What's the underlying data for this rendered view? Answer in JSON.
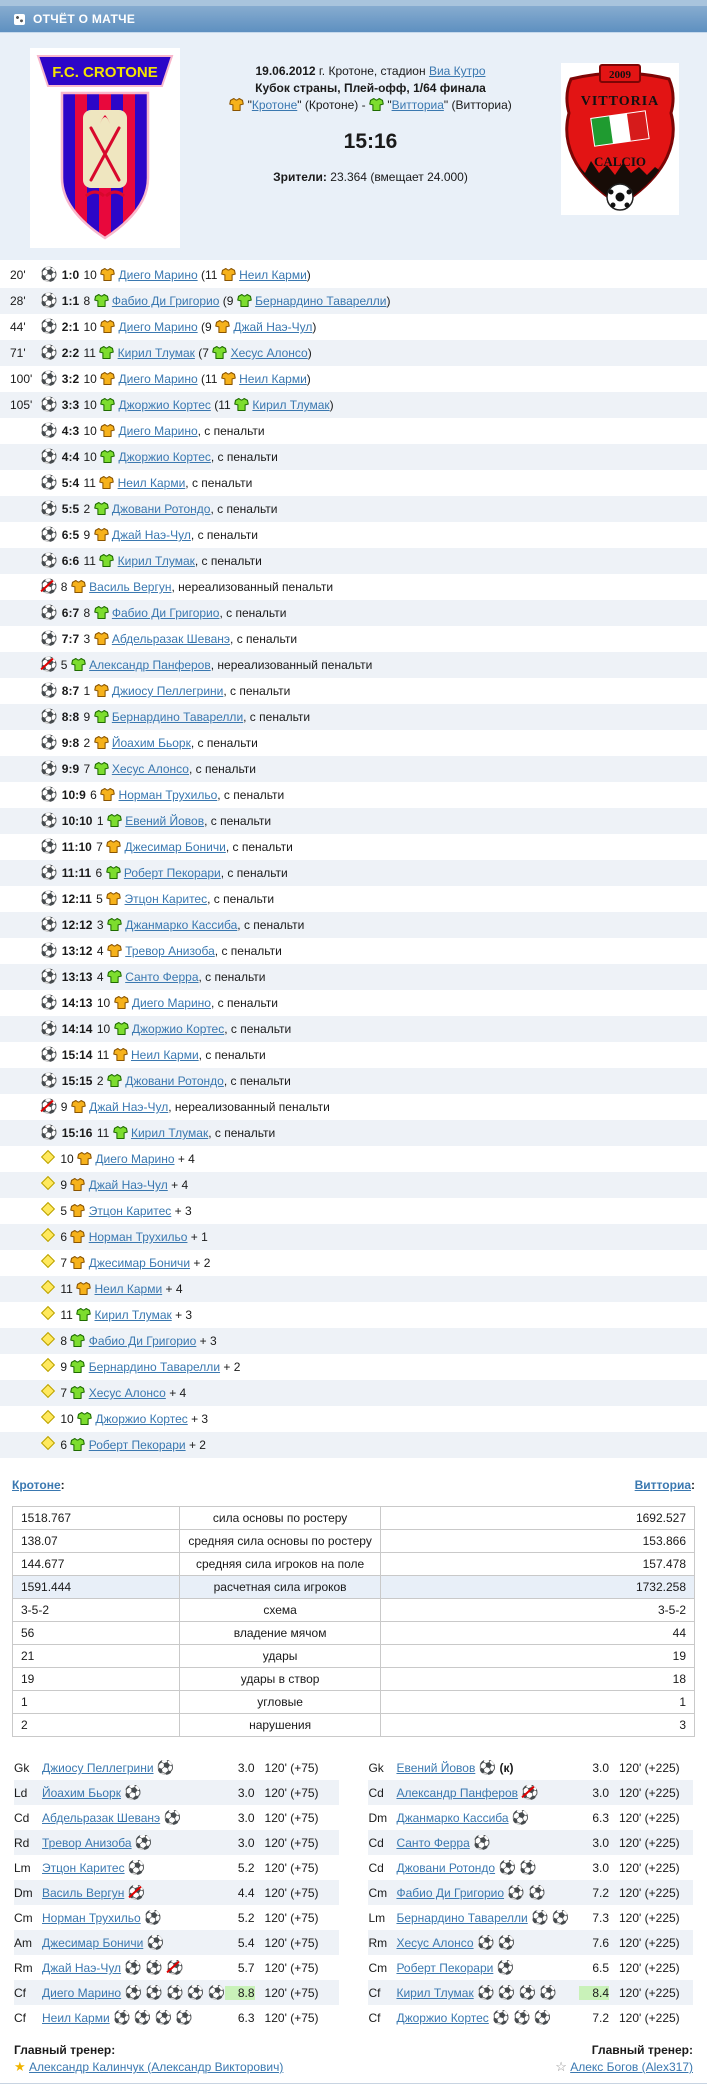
{
  "labels": {
    "quote": "\"",
    "dash": "-",
    "pen": ", с пенальти",
    "miss": ", нереализованный пенальти",
    "colon": ":"
  },
  "header": {
    "title": "ОТЧЁТ О МАТЧЕ"
  },
  "match": {
    "date_bold": "19.06.2012",
    "date_rest": "г. Кротоне, стадион",
    "stadium_link": "Виа Кутро",
    "tournament": "Кубок страны, Плей-офф, 1/64 финала",
    "home_team": {
      "link": "Кротоне",
      "alias": "(Кротоне)"
    },
    "away_team": {
      "link": "Витториа",
      "alias": "(Витториа)"
    },
    "score": "15:16",
    "attendance_label": "Зрители:",
    "attendance_value": "23.364 (вмещает 24.000)"
  },
  "logos": {
    "home": {
      "banner": "F.C. CROTONE"
    },
    "away": {
      "year": "2009",
      "name": "VITTORIA",
      "sub": "CALCIO"
    }
  },
  "events": [
    {
      "time": "20'",
      "kind": "goal",
      "score": "1:0",
      "num": "10",
      "team": "h",
      "player": "Диего Марино",
      "assist": {
        "num": "11",
        "player": "Неил Карми"
      }
    },
    {
      "time": "28'",
      "kind": "goal",
      "score": "1:1",
      "num": "8",
      "team": "a",
      "player": "Фабио Ди Григорио",
      "assist": {
        "num": "9",
        "player": "Бернардино Таварелли"
      }
    },
    {
      "time": "44'",
      "kind": "goal",
      "score": "2:1",
      "num": "10",
      "team": "h",
      "player": "Диего Марино",
      "assist": {
        "num": "9",
        "player": "Джай Наэ-Чул"
      }
    },
    {
      "time": "71'",
      "kind": "goal",
      "score": "2:2",
      "num": "11",
      "team": "a",
      "player": "Кирил Тлумак",
      "assist": {
        "num": "7",
        "player": "Хесус Алонсо"
      }
    },
    {
      "time": "100'",
      "kind": "goal",
      "score": "3:2",
      "num": "10",
      "team": "h",
      "player": "Диего Марино",
      "assist": {
        "num": "11",
        "player": "Неил Карми"
      }
    },
    {
      "time": "105'",
      "kind": "goal",
      "score": "3:3",
      "num": "10",
      "team": "a",
      "player": "Джоржио Кортес",
      "assist": {
        "num": "11",
        "player": "Кирил Тлумак"
      }
    },
    {
      "kind": "pen",
      "score": "4:3",
      "num": "10",
      "team": "h",
      "player": "Диего Марино"
    },
    {
      "kind": "pen",
      "score": "4:4",
      "num": "10",
      "team": "a",
      "player": "Джоржио Кортес"
    },
    {
      "kind": "pen",
      "score": "5:4",
      "num": "11",
      "team": "h",
      "player": "Неил Карми"
    },
    {
      "kind": "pen",
      "score": "5:5",
      "num": "2",
      "team": "a",
      "player": "Джовани Ротондо"
    },
    {
      "kind": "pen",
      "score": "6:5",
      "num": "9",
      "team": "h",
      "player": "Джай Наэ-Чул"
    },
    {
      "kind": "pen",
      "score": "6:6",
      "num": "11",
      "team": "a",
      "player": "Кирил Тлумак"
    },
    {
      "kind": "miss",
      "num": "8",
      "team": "h",
      "player": "Василь Вергун"
    },
    {
      "kind": "pen",
      "score": "6:7",
      "num": "8",
      "team": "a",
      "player": "Фабио Ди Григорио"
    },
    {
      "kind": "pen",
      "score": "7:7",
      "num": "3",
      "team": "h",
      "player": "Абдельразак Шеванэ"
    },
    {
      "kind": "miss",
      "num": "5",
      "team": "a",
      "player": "Александр Панферов"
    },
    {
      "kind": "pen",
      "score": "8:7",
      "num": "1",
      "team": "h",
      "player": "Джиосу Пеллегрини"
    },
    {
      "kind": "pen",
      "score": "8:8",
      "num": "9",
      "team": "a",
      "player": "Бернардино Таварелли"
    },
    {
      "kind": "pen",
      "score": "9:8",
      "num": "2",
      "team": "h",
      "player": "Йоахим Бьорк"
    },
    {
      "kind": "pen",
      "score": "9:9",
      "num": "7",
      "team": "a",
      "player": "Хесус Алонсо"
    },
    {
      "kind": "pen",
      "score": "10:9",
      "num": "6",
      "team": "h",
      "player": "Норман Трухильо"
    },
    {
      "kind": "pen",
      "score": "10:10",
      "num": "1",
      "team": "a",
      "player": "Евений Йовов"
    },
    {
      "kind": "pen",
      "score": "11:10",
      "num": "7",
      "team": "h",
      "player": "Джесимар Боничи"
    },
    {
      "kind": "pen",
      "score": "11:11",
      "num": "6",
      "team": "a",
      "player": "Роберт Пекорари"
    },
    {
      "kind": "pen",
      "score": "12:11",
      "num": "5",
      "team": "h",
      "player": "Этцон Каритес"
    },
    {
      "kind": "pen",
      "score": "12:12",
      "num": "3",
      "team": "a",
      "player": "Джанмарко Кассиба"
    },
    {
      "kind": "pen",
      "score": "13:12",
      "num": "4",
      "team": "h",
      "player": "Тревор Анизоба"
    },
    {
      "kind": "pen",
      "score": "13:13",
      "num": "4",
      "team": "a",
      "player": "Санто Ферра"
    },
    {
      "kind": "pen",
      "score": "14:13",
      "num": "10",
      "team": "h",
      "player": "Диего Марино"
    },
    {
      "kind": "pen",
      "score": "14:14",
      "num": "10",
      "team": "a",
      "player": "Джоржио Кортес"
    },
    {
      "kind": "pen",
      "score": "15:14",
      "num": "11",
      "team": "h",
      "player": "Неил Карми"
    },
    {
      "kind": "pen",
      "score": "15:15",
      "num": "2",
      "team": "a",
      "player": "Джовани Ротондо"
    },
    {
      "kind": "miss",
      "num": "9",
      "team": "h",
      "player": "Джай Наэ-Чул"
    },
    {
      "kind": "pen",
      "score": "15:16",
      "num": "11",
      "team": "a",
      "player": "Кирил Тлумак"
    }
  ],
  "bonuses": [
    {
      "num": "10",
      "team": "h",
      "player": "Диего Марино",
      "bonus": "+ 4"
    },
    {
      "num": "9",
      "team": "h",
      "player": "Джай Наэ-Чул",
      "bonus": "+ 4"
    },
    {
      "num": "5",
      "team": "h",
      "player": "Этцон Каритес",
      "bonus": "+ 3"
    },
    {
      "num": "6",
      "team": "h",
      "player": "Норман Трухильо",
      "bonus": "+ 1"
    },
    {
      "num": "7",
      "team": "h",
      "player": "Джесимар Боничи",
      "bonus": "+ 2"
    },
    {
      "num": "11",
      "team": "h",
      "player": "Неил Карми",
      "bonus": "+ 4"
    },
    {
      "num": "11",
      "team": "a",
      "player": "Кирил Тлумак",
      "bonus": "+ 3"
    },
    {
      "num": "8",
      "team": "a",
      "player": "Фабио Ди Григорио",
      "bonus": "+ 3"
    },
    {
      "num": "9",
      "team": "a",
      "player": "Бернардино Таварелли",
      "bonus": "+ 2"
    },
    {
      "num": "7",
      "team": "a",
      "player": "Хесус Алонсо",
      "bonus": "+ 4"
    },
    {
      "num": "10",
      "team": "a",
      "player": "Джоржио Кортес",
      "bonus": "+ 3"
    },
    {
      "num": "6",
      "team": "a",
      "player": "Роберт Пекорари",
      "bonus": "+ 2"
    }
  ],
  "stats": {
    "home_label": "Кротоне",
    "away_label": "Витториа",
    "rows": [
      {
        "home": "1518.767",
        "label": "сила основы по ростеру",
        "away": "1692.527"
      },
      {
        "home": "138.07",
        "label": "средняя сила основы по ростеру",
        "away": "153.866"
      },
      {
        "home": "144.677",
        "label": "средняя сила игроков на поле",
        "away": "157.478"
      },
      {
        "home": "1591.444",
        "label": "расчетная сила игроков",
        "away": "1732.258",
        "highlight": true
      },
      {
        "home": "3-5-2",
        "label": "схема",
        "away": "3-5-2"
      },
      {
        "home": "56",
        "label": "владение мячом",
        "away": "44"
      },
      {
        "home": "21",
        "label": "удары",
        "away": "19"
      },
      {
        "home": "19",
        "label": "удары в створ",
        "away": "18"
      },
      {
        "home": "1",
        "label": "угловые",
        "away": "1"
      },
      {
        "home": "2",
        "label": "нарушения",
        "away": "3"
      }
    ]
  },
  "lineups": {
    "home": {
      "minutes": "120' (+75)",
      "players": [
        {
          "pos": "Gk",
          "name": "Джиосу Пеллегрини",
          "balls": [
            "goal"
          ],
          "rating": "3.0"
        },
        {
          "pos": "Ld",
          "name": "Йоахим Бьорк",
          "balls": [
            "goal"
          ],
          "rating": "3.0"
        },
        {
          "pos": "Cd",
          "name": "Абдельразак Шеванэ",
          "balls": [
            "goal"
          ],
          "rating": "3.0"
        },
        {
          "pos": "Rd",
          "name": "Тревор Анизоба",
          "balls": [
            "goal"
          ],
          "rating": "3.0"
        },
        {
          "pos": "Lm",
          "name": "Этцон Каритес",
          "balls": [
            "goal"
          ],
          "rating": "5.2"
        },
        {
          "pos": "Dm",
          "name": "Василь Вергун",
          "balls": [
            "miss"
          ],
          "rating": "4.4"
        },
        {
          "pos": "Cm",
          "name": "Норман Трухильо",
          "balls": [
            "goal"
          ],
          "rating": "5.2"
        },
        {
          "pos": "Am",
          "name": "Джесимар Боничи",
          "balls": [
            "goal"
          ],
          "rating": "5.4"
        },
        {
          "pos": "Rm",
          "name": "Джай Наэ-Чул",
          "balls": [
            "assist",
            "goal",
            "miss"
          ],
          "rating": "5.7"
        },
        {
          "pos": "Cf",
          "name": "Диего Марино",
          "balls": [
            "goal",
            "goal",
            "goal",
            "goal",
            "goal"
          ],
          "rating": "8.8",
          "highlight": true
        },
        {
          "pos": "Cf",
          "name": "Неил Карми",
          "balls": [
            "assist",
            "assist",
            "goal",
            "goal"
          ],
          "rating": "6.3"
        }
      ]
    },
    "away": {
      "minutes": "120' (+225)",
      "players": [
        {
          "pos": "Gk",
          "name": "Евений Йовов",
          "balls": [
            "goal"
          ],
          "captain": true,
          "rating": "3.0"
        },
        {
          "pos": "Cd",
          "name": "Александр Панферов",
          "balls": [
            "miss"
          ],
          "rating": "3.0"
        },
        {
          "pos": "Dm",
          "name": "Джанмарко Кассиба",
          "balls": [
            "goal"
          ],
          "rating": "6.3"
        },
        {
          "pos": "Cd",
          "name": "Санто Ферра",
          "balls": [
            "goal"
          ],
          "rating": "3.0"
        },
        {
          "pos": "Cd",
          "name": "Джовани Ротондо",
          "balls": [
            "goal",
            "goal"
          ],
          "rating": "3.0"
        },
        {
          "pos": "Cm",
          "name": "Фабио Ди Григорио",
          "balls": [
            "goal",
            "goal"
          ],
          "rating": "7.2"
        },
        {
          "pos": "Lm",
          "name": "Бернардино Таварелли",
          "balls": [
            "assist",
            "goal"
          ],
          "rating": "7.3"
        },
        {
          "pos": "Rm",
          "name": "Хесус Алонсо",
          "balls": [
            "assist",
            "goal"
          ],
          "rating": "7.6"
        },
        {
          "pos": "Cm",
          "name": "Роберт Пекорари",
          "balls": [
            "goal"
          ],
          "rating": "6.5"
        },
        {
          "pos": "Cf",
          "name": "Кирил Тлумак",
          "balls": [
            "goal",
            "assist",
            "goal",
            "goal"
          ],
          "rating": "8.4",
          "highlight": true
        },
        {
          "pos": "Cf",
          "name": "Джоржио Кортес",
          "balls": [
            "goal",
            "goal",
            "goal"
          ],
          "rating": "7.2"
        }
      ]
    }
  },
  "coaches": {
    "home": {
      "label": "Главный тренер:",
      "name": "Александр Калинчук (Александр Викторович)",
      "star": "gold"
    },
    "away": {
      "label": "Главный тренер:",
      "name": "Алекс Богов (Alex317)",
      "star": "outline"
    }
  },
  "colors": {
    "accent_blue": "#5e90c0",
    "home_shirt": "#f6b21b",
    "away_shirt": "#7ddd2e",
    "rating_highlight": "#c9f2b9",
    "row_stripe": "#eef2f7"
  }
}
